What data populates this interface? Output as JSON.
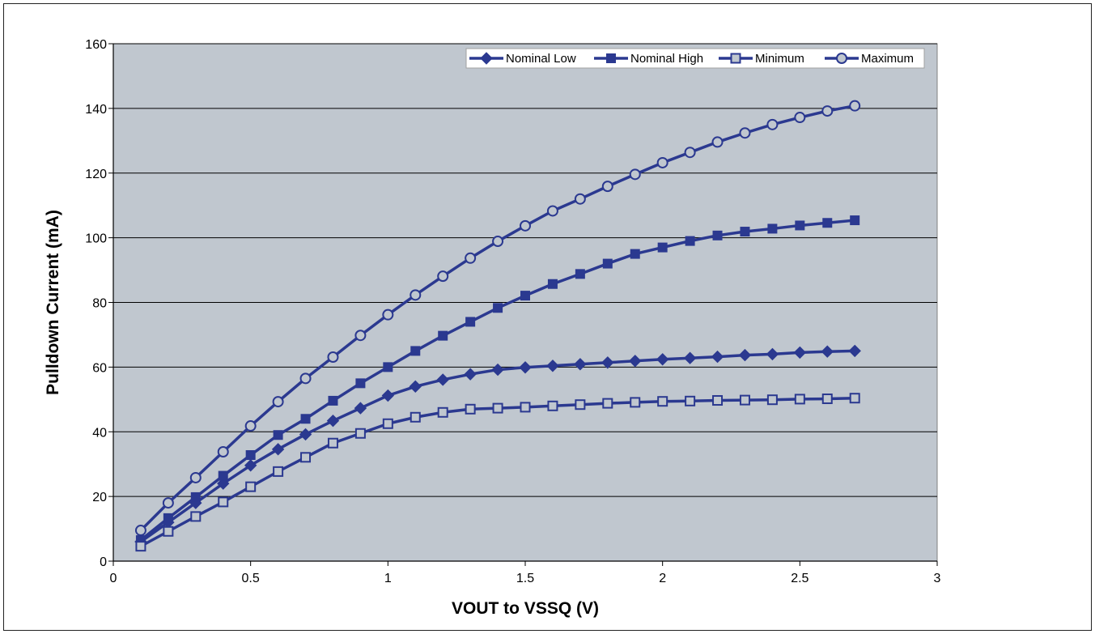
{
  "chart_data": {
    "type": "line",
    "title": "",
    "xlabel": "VOUT to VSSQ (V)",
    "ylabel": "Pulldown Current (mA)",
    "xlim": [
      0,
      3
    ],
    "ylim": [
      0,
      160
    ],
    "x_ticks": [
      "0",
      "0.5",
      "1",
      "1.5",
      "2",
      "2.5",
      "3"
    ],
    "y_ticks": [
      "0",
      "20",
      "40",
      "60",
      "80",
      "100",
      "120",
      "140",
      "160"
    ],
    "grid": "horizontal",
    "legend_position": "top-right",
    "plot_background": "#c0c7cf",
    "line_color": "#2b3990",
    "x": [
      0.1,
      0.2,
      0.3,
      0.4,
      0.5,
      0.6,
      0.7,
      0.8,
      0.9,
      1.0,
      1.1,
      1.2,
      1.3,
      1.4,
      1.5,
      1.6,
      1.7,
      1.8,
      1.9,
      2.0,
      2.1,
      2.2,
      2.3,
      2.4,
      2.5,
      2.6,
      2.7
    ],
    "series": [
      {
        "name": "Nominal Low",
        "marker": "diamond-filled",
        "values": [
          6,
          12,
          18,
          24,
          29.6,
          34.6,
          39.2,
          43.4,
          47.3,
          51.2,
          54,
          56.1,
          57.8,
          59.2,
          59.9,
          60.4,
          60.9,
          61.4,
          61.9,
          62.4,
          62.8,
          63.2,
          63.7,
          64,
          64.5,
          64.8,
          65
        ]
      },
      {
        "name": "Nominal High",
        "marker": "square-filled",
        "values": [
          6.5,
          13.3,
          19.8,
          26.4,
          32.8,
          39,
          44,
          49.6,
          55,
          60,
          65,
          69.7,
          74,
          78.3,
          82.1,
          85.7,
          88.8,
          92,
          95,
          97,
          99,
          100.7,
          101.9,
          102.8,
          103.8,
          104.6,
          105.4
        ]
      },
      {
        "name": "Minimum",
        "marker": "square-open",
        "values": [
          4.6,
          9.2,
          13.8,
          18.3,
          23,
          27.7,
          32.1,
          36.5,
          39.5,
          42.5,
          44.5,
          46,
          47,
          47.3,
          47.6,
          48,
          48.4,
          48.8,
          49.1,
          49.4,
          49.5,
          49.7,
          49.8,
          49.9,
          50.1,
          50.2,
          50.4
        ]
      },
      {
        "name": "Maximum",
        "marker": "circle-open",
        "values": [
          9.5,
          18,
          25.8,
          33.8,
          41.8,
          49.3,
          56.5,
          63.1,
          69.8,
          76.2,
          82.3,
          88.1,
          93.7,
          98.9,
          103.7,
          108.3,
          112,
          115.9,
          119.6,
          123.2,
          126.4,
          129.6,
          132.4,
          135,
          137.2,
          139.2,
          140.8
        ]
      }
    ]
  }
}
